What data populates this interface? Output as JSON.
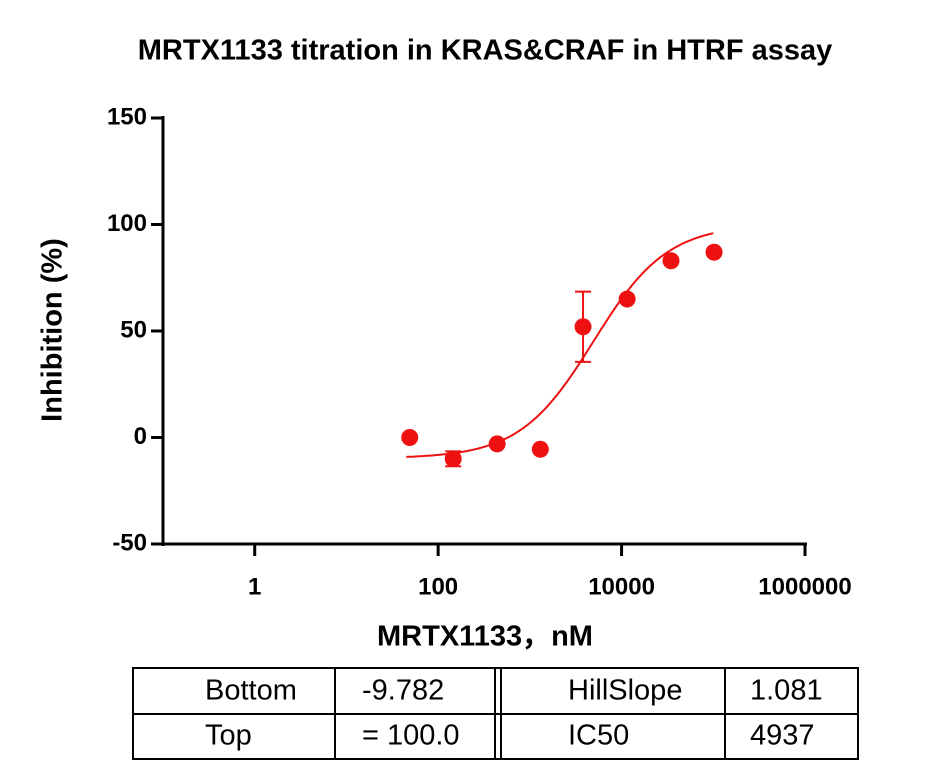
{
  "chart_data": {
    "type": "scatter",
    "title": "MRTX1133 titration in KRAS&CRAF in HTRF assay",
    "x_label": "MRTX1133，nM",
    "y_label": "Inhibition (%)",
    "x_log": true,
    "xlim": [
      0.1,
      1000000
    ],
    "xticks": [
      1,
      100,
      10000,
      1000000
    ],
    "ylim": [
      -50,
      150
    ],
    "yticks": [
      -50,
      0,
      50,
      100,
      150
    ],
    "color": "#ee1111",
    "series": [
      {
        "x": [
          49,
          146,
          440,
          1300,
          3800,
          11500,
          34600,
          102000
        ],
        "values": [
          0,
          -10,
          -3,
          -5.5,
          52,
          65,
          83,
          87
        ],
        "errors": [
          null,
          3.5,
          null,
          null,
          16.5,
          null,
          null,
          null
        ]
      }
    ],
    "fit": {
      "bottom": -9.782,
      "top": 100,
      "hillslope": 1.081,
      "ic50": 4937,
      "xrange": [
        45,
        100000
      ]
    }
  },
  "table": {
    "rows": [
      [
        "Bottom",
        "-9.782",
        "HillSlope",
        "1.081"
      ],
      [
        "Top",
        "= 100.0",
        "IC50",
        "4937"
      ]
    ]
  }
}
